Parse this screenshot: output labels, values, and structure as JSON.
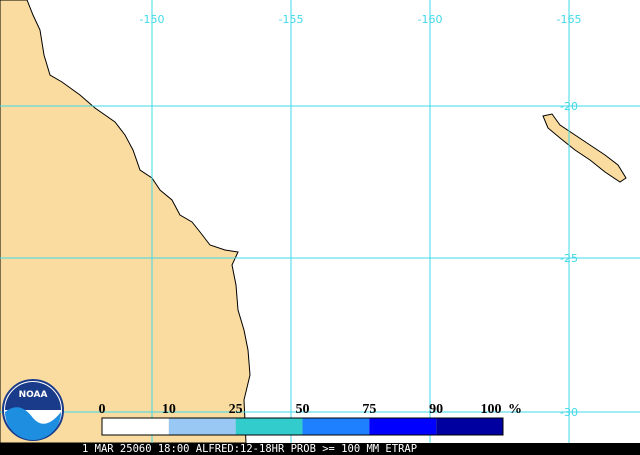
{
  "map": {
    "longitude_labels": [
      "-150",
      "-155",
      "-160",
      "-165"
    ],
    "latitude_labels": [
      "-20",
      "-25",
      "-30"
    ],
    "grid_color": "#40d8e8",
    "land_color": "#fadca0"
  },
  "legend": {
    "labels": [
      "0",
      "10",
      "25",
      "50",
      "75",
      "90",
      "100"
    ],
    "unit": "%",
    "colors": [
      "#ffffff",
      "#99c8f5",
      "#33cccc",
      "#1e7fff",
      "#0000ff",
      "#0000a0"
    ]
  },
  "footer": "1 MAR 25060 18:00 ALFRED:12-18HR PROB >= 100 MM ETRAP",
  "logo": "NOAA"
}
